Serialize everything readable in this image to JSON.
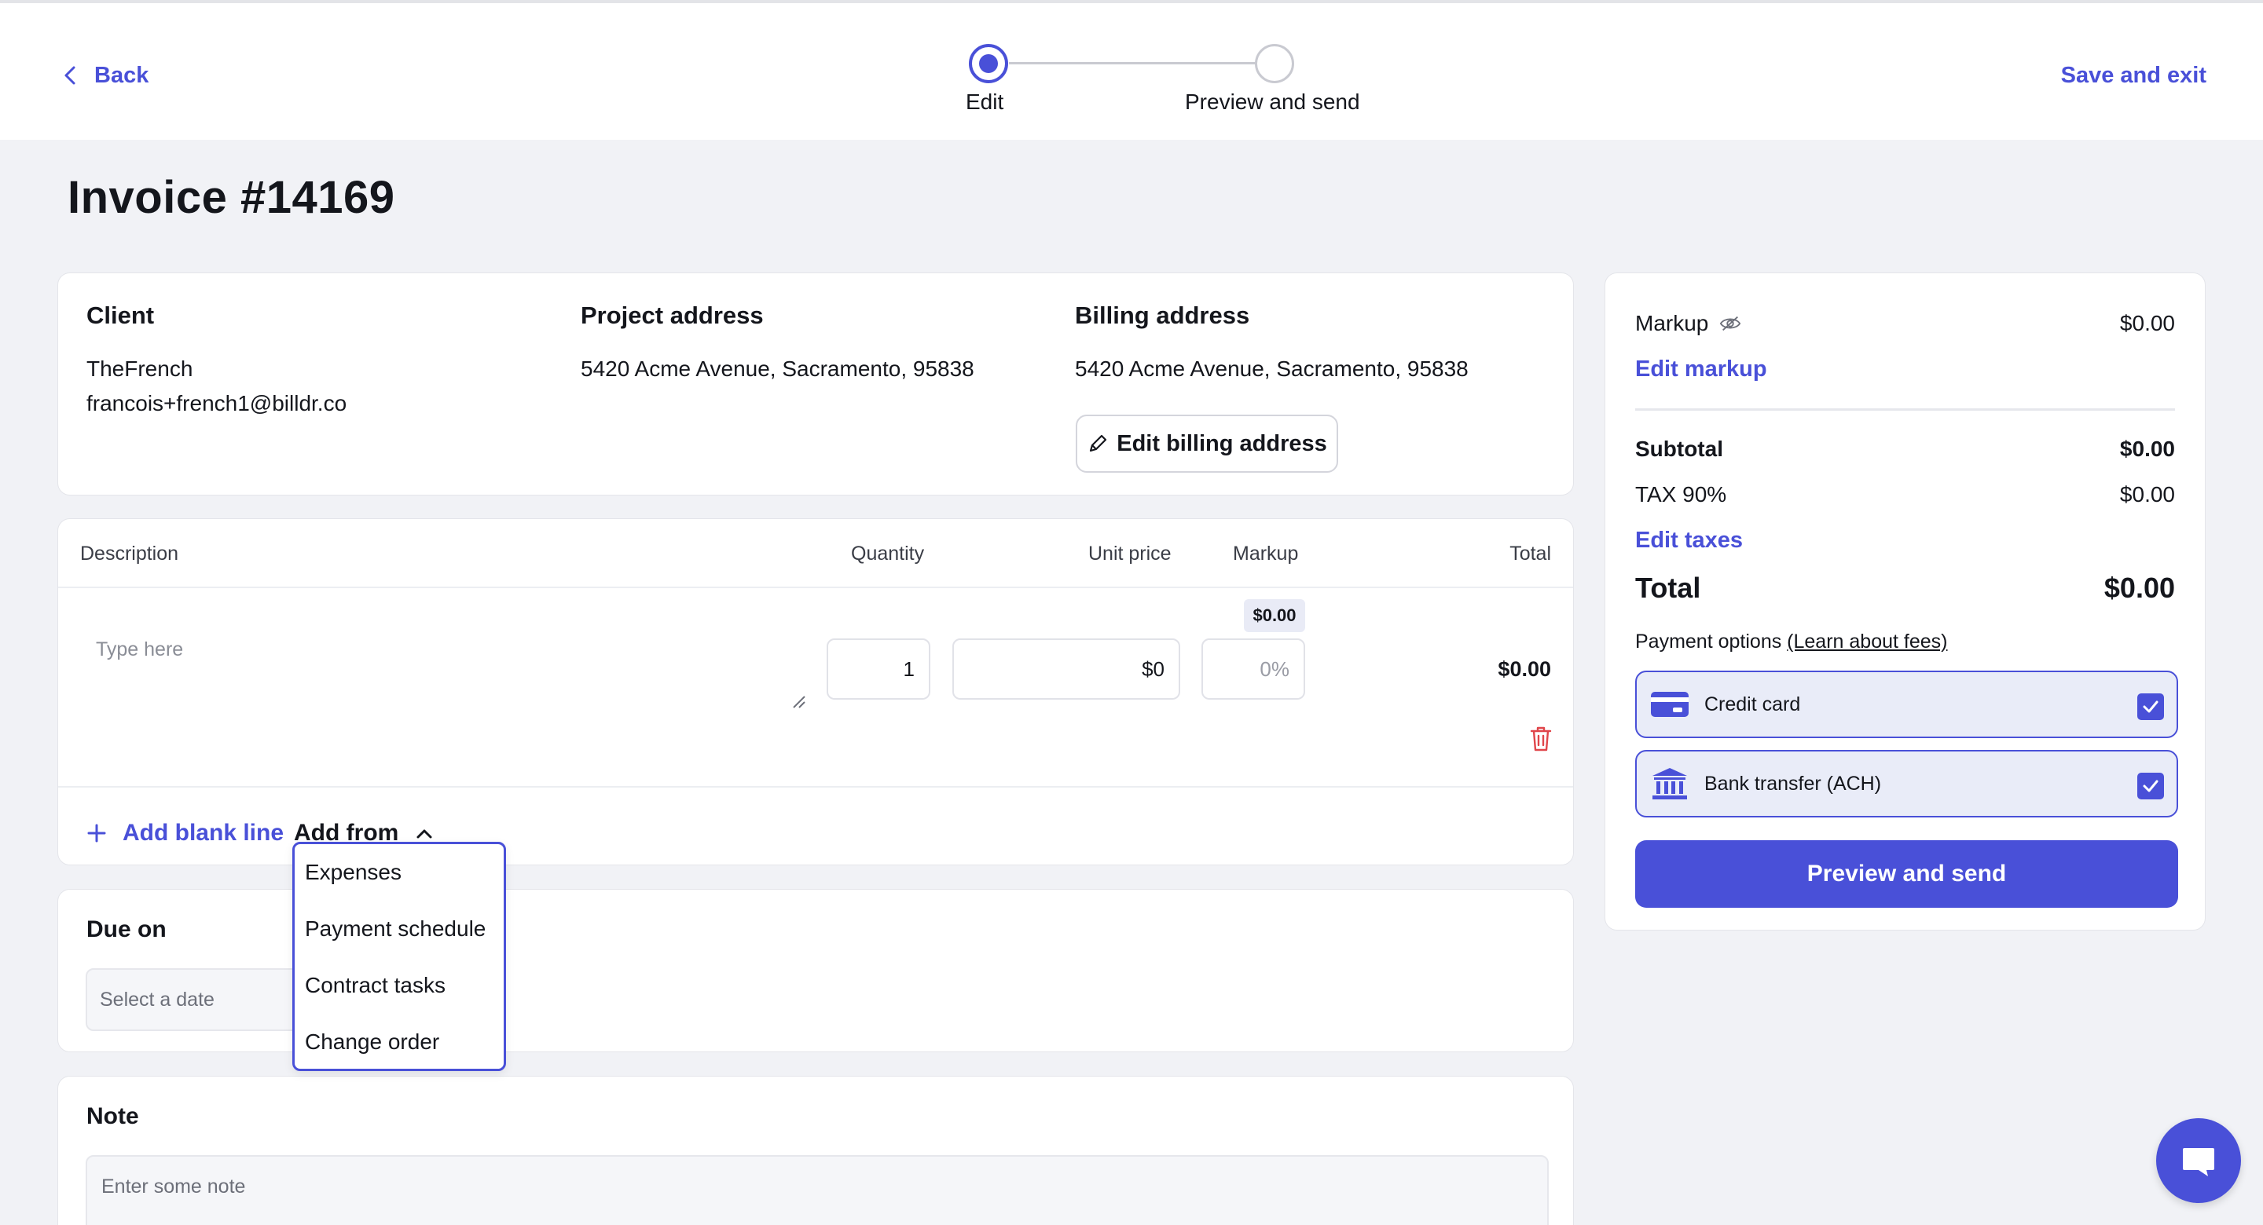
{
  "header": {
    "back_label": "Back",
    "save_exit_label": "Save and exit",
    "steps": [
      {
        "label": "Edit",
        "state": "active"
      },
      {
        "label": "Preview and send",
        "state": "inactive"
      }
    ]
  },
  "invoice": {
    "title": "Invoice #14169"
  },
  "addresses": {
    "client": {
      "heading": "Client",
      "name": "TheFrench",
      "email": "francois+french1@billdr.co"
    },
    "project": {
      "heading": "Project address",
      "address": "5420 Acme Avenue, Sacramento, 95838"
    },
    "billing": {
      "heading": "Billing address",
      "address": "5420 Acme Avenue, Sacramento, 95838",
      "edit_label": "Edit billing address"
    }
  },
  "line_items": {
    "columns": {
      "description": "Description",
      "quantity": "Quantity",
      "unit_price": "Unit price",
      "markup": "Markup",
      "total": "Total"
    },
    "row": {
      "description_placeholder": "Type here",
      "quantity": "1",
      "unit_price": "$0",
      "markup_amount": "$0.00",
      "markup_placeholder": "0%",
      "total": "$0.00"
    },
    "add_blank_label": "Add blank line",
    "add_from_label": "Add from",
    "add_from_menu": [
      "Expenses",
      "Payment schedule",
      "Contract tasks",
      "Change order"
    ]
  },
  "due": {
    "heading": "Due on",
    "placeholder": "Select a date"
  },
  "note": {
    "heading": "Note",
    "placeholder": "Enter some note"
  },
  "summary": {
    "markup_label": "Markup",
    "markup_value": "$0.00",
    "edit_markup_label": "Edit markup",
    "subtotal_label": "Subtotal",
    "subtotal_value": "$0.00",
    "tax_label": "TAX 90%",
    "tax_value": "$0.00",
    "edit_taxes_label": "Edit taxes",
    "total_label": "Total",
    "total_value": "$0.00",
    "payment_options_label": "Payment options",
    "learn_fees_label": "(Learn about fees)",
    "payment_methods": [
      {
        "label": "Credit card",
        "checked": true,
        "icon": "credit-card-icon"
      },
      {
        "label": "Bank transfer (ACH)",
        "checked": true,
        "icon": "bank-icon"
      }
    ],
    "preview_send_label": "Preview and send"
  },
  "colors": {
    "accent": "#4950d8",
    "background": "#f1f2f6",
    "card": "#ffffff",
    "danger": "#e0454a"
  }
}
